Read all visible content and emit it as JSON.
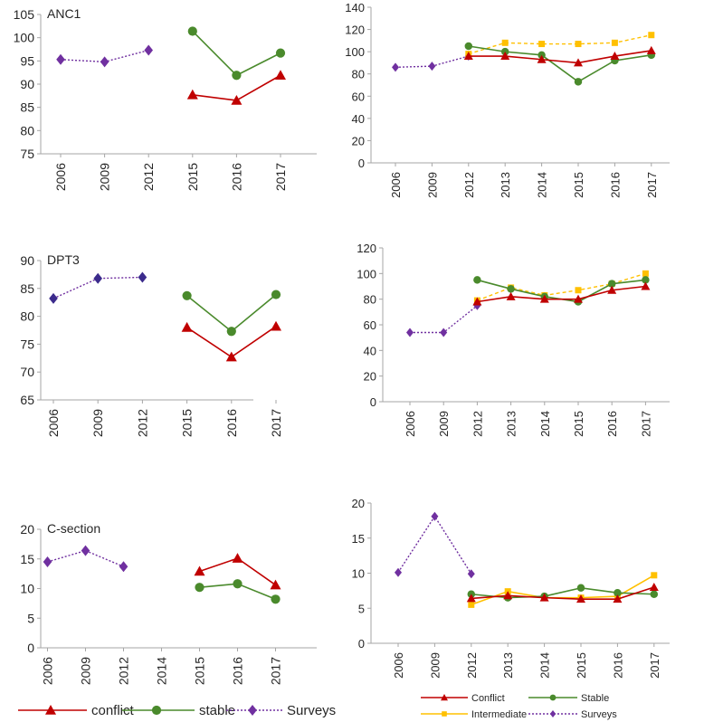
{
  "colors": {
    "conflict": "#c00000",
    "stable": "#4a8a2c",
    "surveys": "#7030a0",
    "surveys_dark": "#3b2b8c",
    "intermediate": "#ffc000",
    "axis": "#a6a6a6"
  },
  "chart_data": [
    {
      "id": "anc1-left",
      "type": "line",
      "title": "ANC1",
      "categories": [
        "2006",
        "2009",
        "2012",
        "2015",
        "2016",
        "2017"
      ],
      "ylim": [
        75,
        105
      ],
      "yticks": [
        75,
        80,
        85,
        90,
        95,
        100,
        105
      ],
      "series": [
        {
          "name": "Surveys",
          "key": "surveys",
          "marker": "diamond",
          "dash": true,
          "values": [
            95.3,
            94.8,
            97.3,
            null,
            null,
            null
          ]
        },
        {
          "name": "stable",
          "key": "stable",
          "marker": "circle",
          "dash": false,
          "values": [
            null,
            null,
            null,
            101.4,
            91.9,
            96.7
          ]
        },
        {
          "name": "conflict",
          "key": "conflict",
          "marker": "triangle",
          "dash": false,
          "values": [
            null,
            null,
            null,
            87.7,
            86.5,
            91.9
          ]
        }
      ]
    },
    {
      "id": "anc1-right",
      "type": "line",
      "title": "",
      "categories": [
        "2006",
        "2009",
        "2012",
        "2013",
        "2014",
        "2015",
        "2016",
        "2017"
      ],
      "ylim": [
        0,
        140
      ],
      "yticks": [
        0,
        20,
        40,
        60,
        80,
        100,
        120,
        140
      ],
      "series": [
        {
          "name": "Surveys",
          "key": "surveys",
          "marker": "diamond",
          "dash": true,
          "values": [
            86,
            87,
            96,
            null,
            null,
            null,
            null,
            null
          ]
        },
        {
          "name": "Intermediate",
          "key": "intermediate",
          "marker": "square",
          "dash": true,
          "values": [
            null,
            null,
            98,
            108,
            107,
            107,
            108,
            115
          ]
        },
        {
          "name": "Stable",
          "key": "stable",
          "marker": "circle",
          "dash": false,
          "values": [
            null,
            null,
            105,
            100,
            97,
            73,
            92,
            97
          ]
        },
        {
          "name": "Conflict",
          "key": "conflict",
          "marker": "triangle",
          "dash": false,
          "values": [
            null,
            null,
            96,
            96,
            93,
            90,
            96,
            101
          ]
        }
      ]
    },
    {
      "id": "dpt3-left",
      "type": "line",
      "title": "DPT3",
      "categories": [
        "2006",
        "2009",
        "2012",
        "2015",
        "2016",
        "2017"
      ],
      "ylim": [
        65,
        90
      ],
      "yticks": [
        65,
        70,
        75,
        80,
        85,
        90
      ],
      "series": [
        {
          "name": "Surveys",
          "key": "surveys",
          "marker": "diamond",
          "dash": true,
          "values": [
            83.2,
            86.8,
            87.0,
            null,
            null,
            null
          ]
        },
        {
          "name": "stable",
          "key": "stable",
          "marker": "circle",
          "dash": false,
          "values": [
            null,
            null,
            null,
            83.7,
            77.3,
            83.9
          ]
        },
        {
          "name": "conflict",
          "key": "conflict",
          "marker": "triangle",
          "dash": false,
          "values": [
            null,
            null,
            null,
            78.0,
            72.7,
            78.2
          ]
        }
      ]
    },
    {
      "id": "dpt3-right",
      "type": "line",
      "title": "",
      "categories": [
        "2006",
        "2009",
        "2012",
        "2013",
        "2014",
        "2015",
        "2016",
        "2017"
      ],
      "ylim": [
        0,
        120
      ],
      "yticks": [
        0,
        20,
        40,
        60,
        80,
        100,
        120
      ],
      "series": [
        {
          "name": "Surveys",
          "key": "surveys",
          "marker": "diamond",
          "dash": true,
          "values": [
            54,
            54,
            75,
            null,
            null,
            null,
            null,
            null
          ]
        },
        {
          "name": "Intermediate",
          "key": "intermediate",
          "marker": "square",
          "dash": true,
          "values": [
            null,
            null,
            79,
            89,
            83,
            87,
            92,
            100
          ]
        },
        {
          "name": "Stable",
          "key": "stable",
          "marker": "circle",
          "dash": false,
          "values": [
            null,
            null,
            95,
            88,
            82,
            78,
            92,
            95
          ]
        },
        {
          "name": "Conflict",
          "key": "conflict",
          "marker": "triangle",
          "dash": false,
          "values": [
            null,
            null,
            78,
            82,
            80,
            80,
            87,
            90
          ]
        }
      ]
    },
    {
      "id": "csection-left",
      "type": "line",
      "title": "C-section",
      "categories": [
        "2006",
        "2009",
        "2012",
        "2014",
        "2015",
        "2016",
        "2017"
      ],
      "ylim": [
        0,
        20
      ],
      "yticks": [
        0,
        5,
        10,
        15,
        20
      ],
      "series": [
        {
          "name": "Surveys",
          "key": "surveys",
          "marker": "diamond",
          "dash": true,
          "values": [
            14.5,
            16.4,
            13.7,
            null,
            null,
            null,
            null
          ]
        },
        {
          "name": "conflict",
          "key": "conflict",
          "marker": "triangle",
          "dash": false,
          "values": [
            null,
            null,
            null,
            null,
            12.9,
            15.1,
            10.6
          ]
        },
        {
          "name": "stable",
          "key": "stable",
          "marker": "circle",
          "dash": false,
          "values": [
            null,
            null,
            null,
            null,
            10.2,
            10.8,
            8.2
          ]
        }
      ]
    },
    {
      "id": "csection-right",
      "type": "line",
      "title": "",
      "categories": [
        "2006",
        "2009",
        "2012",
        "2013",
        "2014",
        "2015",
        "2016",
        "2017"
      ],
      "ylim": [
        0,
        20
      ],
      "yticks": [
        0,
        5,
        10,
        15,
        20
      ],
      "series": [
        {
          "name": "Surveys",
          "key": "surveys",
          "marker": "diamond",
          "dash": true,
          "values": [
            10.1,
            18.1,
            9.9,
            null,
            null,
            null,
            null,
            null
          ]
        },
        {
          "name": "Intermediate",
          "key": "intermediate",
          "marker": "square",
          "dash": false,
          "values": [
            null,
            null,
            5.5,
            7.4,
            6.5,
            6.5,
            6.7,
            9.7
          ]
        },
        {
          "name": "Stable",
          "key": "stable",
          "marker": "circle",
          "dash": false,
          "values": [
            null,
            null,
            7.0,
            6.5,
            6.7,
            7.9,
            7.2,
            7.0
          ]
        },
        {
          "name": "Conflict",
          "key": "conflict",
          "marker": "triangle",
          "dash": false,
          "values": [
            null,
            null,
            6.4,
            6.8,
            6.5,
            6.3,
            6.3,
            8.0
          ]
        }
      ]
    }
  ],
  "legends": {
    "left": [
      {
        "key": "conflict",
        "label": "conflict",
        "marker": "triangle",
        "dash": false
      },
      {
        "key": "stable",
        "label": "stable",
        "marker": "circle",
        "dash": false
      },
      {
        "key": "surveys",
        "label": "Surveys",
        "marker": "diamond",
        "dash": true
      }
    ],
    "right": [
      {
        "key": "conflict",
        "label": "Conflict",
        "marker": "triangle",
        "dash": false
      },
      {
        "key": "stable",
        "label": "Stable",
        "marker": "circle",
        "dash": false
      },
      {
        "key": "intermediate",
        "label": "Intermediate",
        "marker": "square",
        "dash": false
      },
      {
        "key": "surveys",
        "label": "Surveys",
        "marker": "diamond",
        "dash": true
      }
    ]
  }
}
